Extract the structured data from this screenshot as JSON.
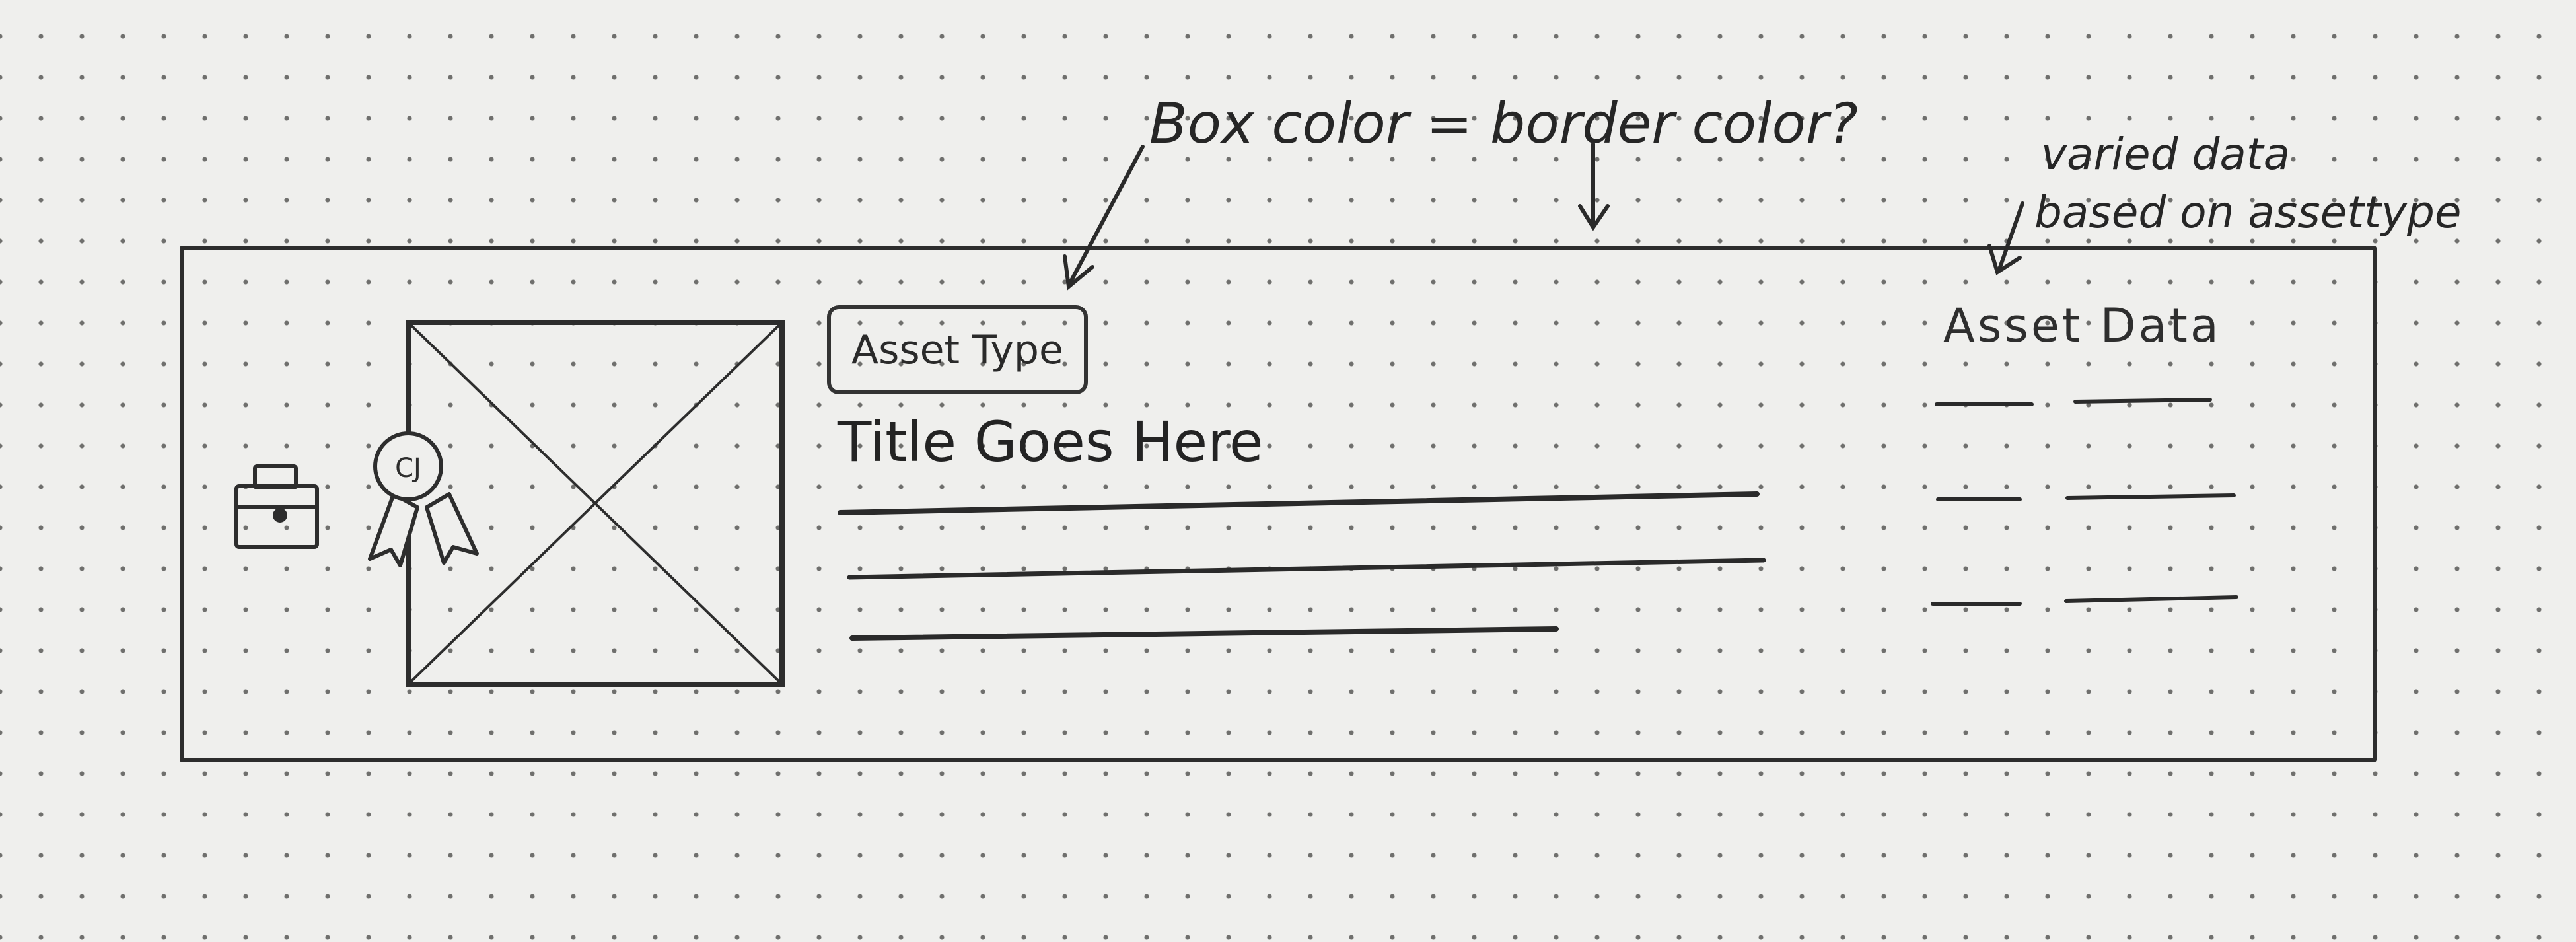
{
  "annotations": {
    "box_color_note": "Box color = border color?",
    "varied_data_line1": "varied data",
    "varied_data_line2": "based on assettype"
  },
  "card": {
    "badge_text": "CJ",
    "asset_type_label": "Asset Type",
    "title": "Title Goes Here",
    "asset_data_label": "Asset Data"
  },
  "icons": {
    "briefcase": "briefcase-icon",
    "badge": "award-ribbon-icon",
    "image": "image-placeholder-icon"
  },
  "colors": {
    "paper": "#efefed",
    "ink": "#2d2d2d"
  }
}
